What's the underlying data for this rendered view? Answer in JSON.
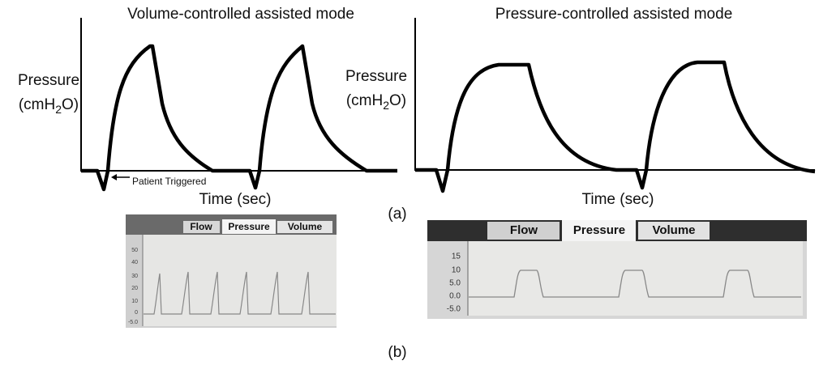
{
  "panel_a": {
    "left": {
      "title": "Volume-controlled assisted mode",
      "ylabel": {
        "line1": "Pressure",
        "line2": {
          "before": "(cmH",
          "sub": "2",
          "after": "O)"
        }
      },
      "xlabel": "Time (sec)",
      "annotation": "Patient Triggered"
    },
    "right": {
      "title": "Pressure-controlled assisted mode",
      "ylabel": {
        "line1": "Pressure",
        "line2": {
          "before": "(cmH",
          "sub": "2",
          "after": "O)"
        }
      },
      "xlabel": "Time (sec)"
    },
    "label": "(a)"
  },
  "panel_b": {
    "left": {
      "tabs": [
        "Flow",
        "Pressure",
        "Volume"
      ],
      "scale": [
        "50",
        "40",
        "30",
        "20",
        "10",
        "0",
        "-5.0"
      ]
    },
    "right": {
      "tabs": [
        "Flow",
        "Pressure",
        "Volume"
      ],
      "scale": [
        "15",
        "10",
        "5.0",
        "0.0",
        "-5.0"
      ]
    },
    "label": "(b)"
  }
}
